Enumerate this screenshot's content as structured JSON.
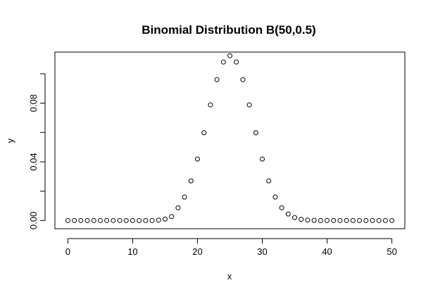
{
  "chart_data": {
    "type": "scatter",
    "title": "Binomial Distribution B(50,0.5)",
    "xlabel": "x",
    "ylabel": "y",
    "xlim": [
      -2,
      52
    ],
    "ylim": [
      -0.0056,
      0.1148
    ],
    "x_ticks": [
      0,
      10,
      20,
      30,
      40,
      50
    ],
    "x_tick_labels": [
      "0",
      "10",
      "20",
      "30",
      "40",
      "50"
    ],
    "y_ticks": [
      0,
      0.02,
      0.04,
      0.06,
      0.08,
      0.1
    ],
    "y_tick_labels": [
      "0.00",
      "",
      "0.04",
      "",
      "0.08",
      ""
    ],
    "marker": "open-circle",
    "grid": false,
    "legend": "none",
    "series": [
      {
        "x": [
          0,
          1,
          2,
          3,
          4,
          5,
          6,
          7,
          8,
          9,
          10,
          11,
          12,
          13,
          14,
          15,
          16,
          17,
          18,
          19,
          20,
          21,
          22,
          23,
          24,
          25,
          26,
          27,
          28,
          29,
          30,
          31,
          32,
          33,
          34,
          35,
          36,
          37,
          38,
          39,
          40,
          41,
          42,
          43,
          44,
          45,
          46,
          47,
          48,
          49,
          50
        ],
        "values": [
          0.0,
          0.0,
          0.0,
          0.0,
          0.0,
          0.0,
          0.0,
          0.0,
          0.0,
          0.0,
          0.0,
          0.0,
          0.0,
          0.0,
          0.0003,
          0.001,
          0.0027,
          0.0087,
          0.016,
          0.027,
          0.0419,
          0.0598,
          0.0788,
          0.096,
          0.108,
          0.1123,
          0.108,
          0.096,
          0.0788,
          0.0598,
          0.0419,
          0.027,
          0.016,
          0.0087,
          0.0044,
          0.002,
          0.0008,
          0.0003,
          0.0001,
          0.0,
          0.0,
          0.0,
          0.0,
          0.0,
          0.0,
          0.0,
          0.0,
          0.0,
          0.0,
          0.0,
          0.0
        ]
      }
    ]
  }
}
